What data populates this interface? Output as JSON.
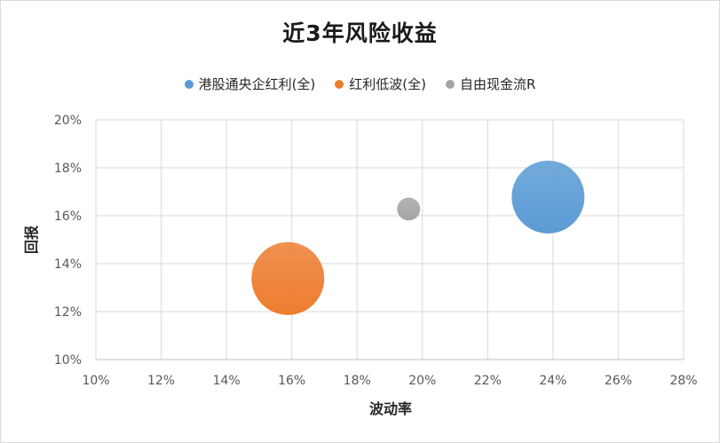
{
  "chart_data": {
    "type": "scatter",
    "title": "近3年风险收益",
    "xlabel": "波动率",
    "ylabel": "回报",
    "xlim": [
      0.1,
      0.28
    ],
    "ylim": [
      0.1,
      0.2
    ],
    "x_ticks": [
      0.1,
      0.12,
      0.14,
      0.16,
      0.18,
      0.2,
      0.22,
      0.24,
      0.26,
      0.28
    ],
    "y_ticks": [
      0.1,
      0.12,
      0.14,
      0.16,
      0.18,
      0.2
    ],
    "x_tick_labels": [
      "10%",
      "12%",
      "14%",
      "16%",
      "18%",
      "20%",
      "22%",
      "24%",
      "26%",
      "28%"
    ],
    "y_tick_labels": [
      "10%",
      "12%",
      "14%",
      "16%",
      "18%",
      "20%"
    ],
    "grid": true,
    "legend_position": "top",
    "series": [
      {
        "name": "港股通央企红利(全)",
        "color": "#5b9bd5",
        "x": 0.2385,
        "y": 0.1678,
        "size": 1.0
      },
      {
        "name": "红利低波(全)",
        "color": "#ed7d31",
        "x": 0.1588,
        "y": 0.1338,
        "size": 1.0
      },
      {
        "name": "自由现金流R",
        "color": "#a5a5a5",
        "x": 0.1958,
        "y": 0.1628,
        "size": 0.1
      }
    ]
  }
}
